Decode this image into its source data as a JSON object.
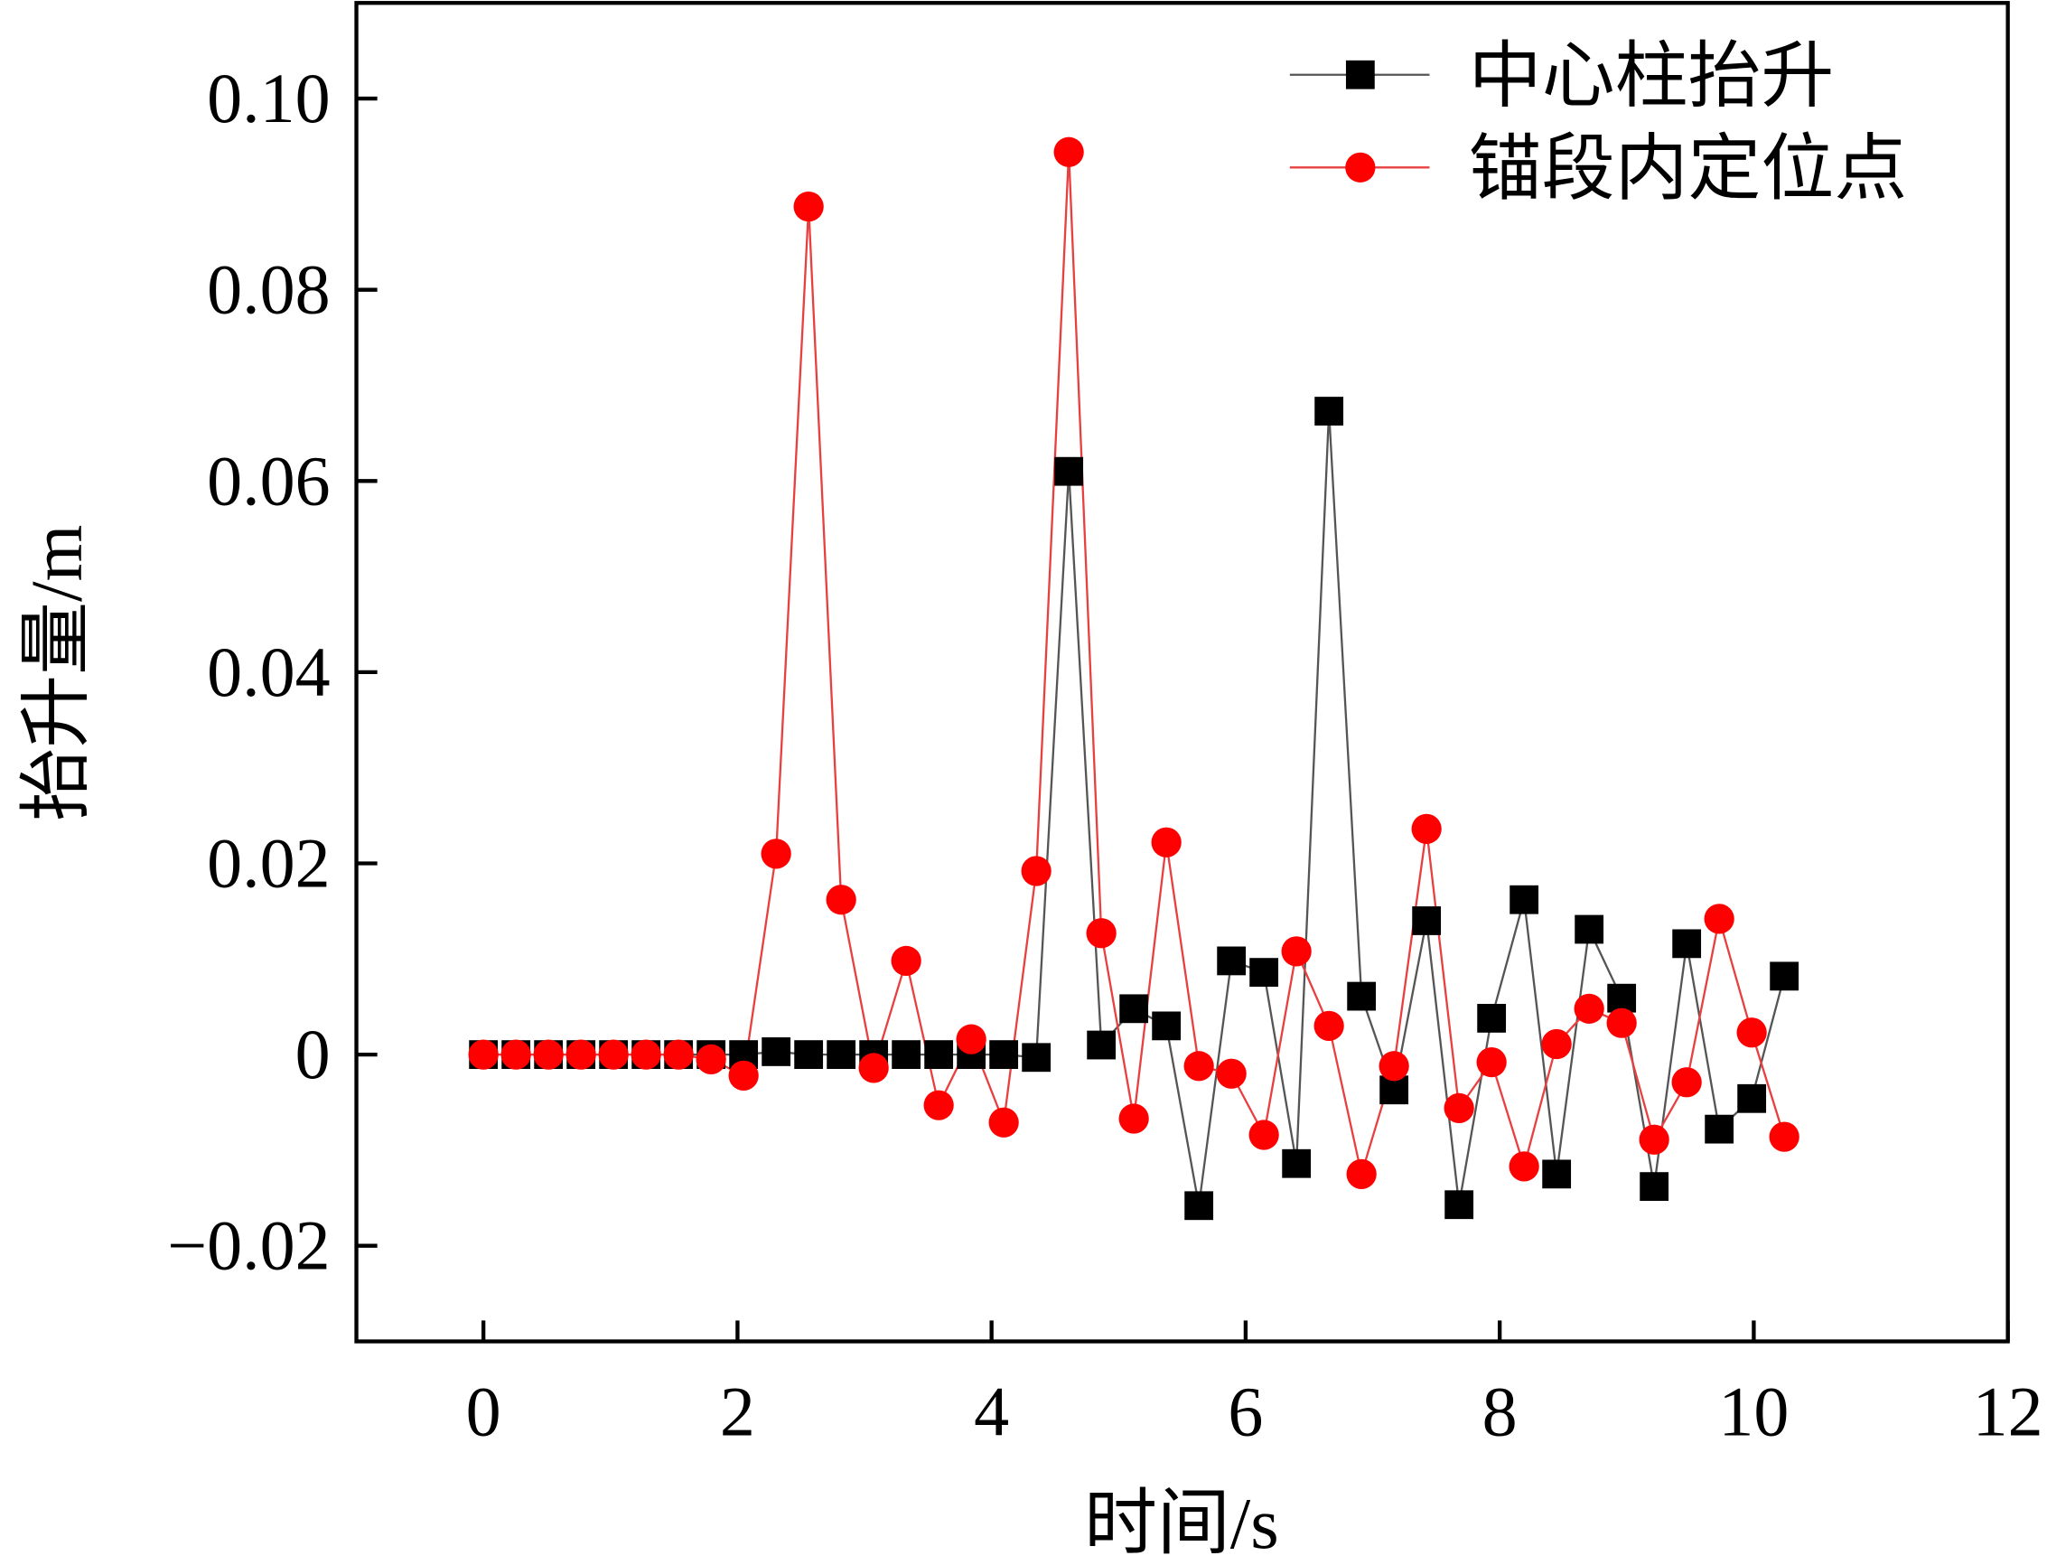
{
  "chart_data": {
    "type": "line",
    "xlabel": "时间/s",
    "ylabel": "抬升量/m",
    "x": [
      0,
      0.256,
      0.512,
      0.768,
      1.024,
      1.28,
      1.536,
      1.792,
      2.048,
      2.304,
      2.56,
      2.816,
      3.072,
      3.328,
      3.584,
      3.84,
      4.096,
      4.352,
      4.608,
      4.864,
      5.12,
      5.376,
      5.632,
      5.888,
      6.144,
      6.4,
      6.656,
      6.912,
      7.168,
      7.424,
      7.68,
      7.936,
      8.192,
      8.448,
      8.704,
      8.96,
      9.216,
      9.472,
      9.728,
      9.984,
      10.24
    ],
    "series": [
      {
        "name": "中心柱抬升",
        "color": "#000000",
        "line_color": "#555555",
        "marker": "square",
        "values": [
          0,
          0,
          0,
          0,
          0,
          0,
          0,
          0,
          0,
          0.0003,
          0,
          0,
          0,
          0,
          0,
          0,
          0,
          -0.0003,
          0.061,
          0.001,
          0.0048,
          0.003,
          -0.0158,
          0.0098,
          0.0086,
          -0.0114,
          0.0673,
          0.0061,
          -0.0037,
          0.014,
          -0.0157,
          0.0038,
          0.0162,
          -0.0125,
          0.0131,
          0.0059,
          -0.0138,
          0.0116,
          -0.0078,
          -0.0046,
          0.0082
        ]
      },
      {
        "name": "锚段内定位点",
        "color": "#ff0000",
        "line_color": "#e84040",
        "marker": "circle",
        "values": [
          0,
          0,
          0,
          0,
          0,
          0,
          0,
          -0.0005,
          -0.0022,
          0.021,
          0.0887,
          0.0162,
          -0.0014,
          0.0098,
          -0.0053,
          0.0016,
          -0.0071,
          0.0192,
          0.0944,
          0.0127,
          -0.0067,
          0.0222,
          -0.0012,
          -0.002,
          -0.0084,
          0.0108,
          0.003,
          -0.0125,
          -0.0012,
          0.0236,
          -0.0056,
          -0.0008,
          -0.0117,
          0.0011,
          0.0048,
          0.0033,
          -0.0089,
          -0.0029,
          0.0142,
          0.0023,
          -0.0086
        ]
      }
    ],
    "xlim": [
      -1,
      12
    ],
    "ylim": [
      -0.03,
      0.11
    ],
    "xticks": [
      0,
      2,
      4,
      6,
      8,
      10,
      12
    ],
    "yticks": [
      {
        "value": -0.02,
        "label": "−0.02"
      },
      0,
      0.02,
      0.04,
      0.06,
      0.08,
      {
        "value": 0.1,
        "label": "0.10"
      }
    ],
    "legend": "upper right"
  }
}
